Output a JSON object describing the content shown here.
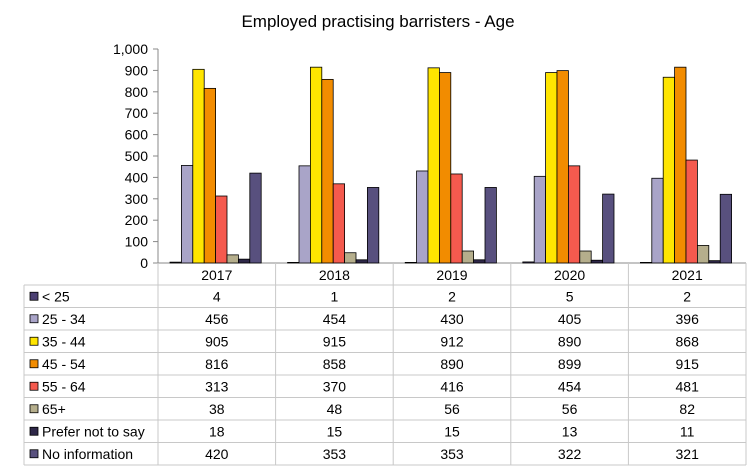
{
  "chart_data": {
    "type": "bar",
    "title": "Employed practising barristers - Age",
    "categories": [
      "2017",
      "2018",
      "2019",
      "2020",
      "2021"
    ],
    "ylim": [
      0,
      1000
    ],
    "yticks": [
      "0",
      "100",
      "200",
      "300",
      "400",
      "500",
      "600",
      "700",
      "800",
      "900",
      "1,000"
    ],
    "grid": false,
    "legend": "data-table-below",
    "series": [
      {
        "name": "< 25",
        "color": "#4B3F72",
        "values": [
          4,
          1,
          2,
          5,
          2
        ]
      },
      {
        "name": "25 - 34",
        "color": "#A9A4C8",
        "values": [
          456,
          454,
          430,
          405,
          396
        ]
      },
      {
        "name": "35 - 44",
        "color": "#FFE500",
        "values": [
          905,
          915,
          912,
          890,
          868
        ]
      },
      {
        "name": "45 - 54",
        "color": "#F28C00",
        "values": [
          816,
          858,
          890,
          899,
          915
        ]
      },
      {
        "name": "55 - 64",
        "color": "#F55A4E",
        "values": [
          313,
          370,
          416,
          454,
          481
        ]
      },
      {
        "name": "65+",
        "color": "#B5AE8C",
        "values": [
          38,
          48,
          56,
          56,
          82
        ]
      },
      {
        "name": "Prefer not to say",
        "color": "#2E2748",
        "values": [
          18,
          15,
          15,
          13,
          11
        ]
      },
      {
        "name": "No information",
        "color": "#58507E",
        "values": [
          420,
          353,
          353,
          322,
          321
        ]
      }
    ]
  }
}
